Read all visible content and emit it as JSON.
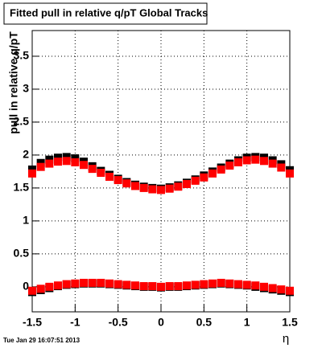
{
  "chart_data": {
    "type": "scatter",
    "title": "Fitted pull in relative q/pT  Global Tracks",
    "y_label": "pull in relative q/pT",
    "x_label": "η",
    "footer": "Tue Jan 29 16:07:51 2013",
    "xlim": [
      -1.5,
      1.5
    ],
    "ylim": [
      -0.38,
      3.89
    ],
    "xticks": [
      -1.5,
      -1,
      -0.5,
      0,
      0.5,
      1,
      1.5
    ],
    "yticks": [
      0,
      0.5,
      1,
      1.5,
      2,
      2.5,
      3,
      3.5
    ],
    "grid": true,
    "x": [
      -1.5,
      -1.4,
      -1.3,
      -1.2,
      -1.1,
      -1.0,
      -0.9,
      -0.8,
      -0.7,
      -0.6,
      -0.5,
      -0.4,
      -0.3,
      -0.2,
      -0.1,
      0,
      0.1,
      0.2,
      0.3,
      0.4,
      0.5,
      0.6,
      0.7,
      0.8,
      0.9,
      1.0,
      1.1,
      1.2,
      1.3,
      1.4,
      1.5
    ],
    "series": [
      {
        "color": "#000000",
        "values": [
          1.78,
          1.88,
          1.93,
          1.96,
          1.97,
          1.95,
          1.9,
          1.83,
          1.76,
          1.7,
          1.64,
          1.59,
          1.55,
          1.52,
          1.5,
          1.49,
          1.51,
          1.54,
          1.58,
          1.63,
          1.69,
          1.75,
          1.81,
          1.87,
          1.92,
          1.96,
          1.97,
          1.96,
          1.92,
          1.86,
          1.77
        ]
      },
      {
        "color": "#ff0000",
        "values": [
          1.72,
          1.82,
          1.87,
          1.9,
          1.91,
          1.89,
          1.85,
          1.79,
          1.73,
          1.67,
          1.62,
          1.57,
          1.53,
          1.5,
          1.48,
          1.47,
          1.49,
          1.52,
          1.56,
          1.61,
          1.66,
          1.72,
          1.78,
          1.84,
          1.89,
          1.92,
          1.93,
          1.91,
          1.87,
          1.81,
          1.72
        ]
      },
      {
        "color": "#000000",
        "values": [
          -0.08,
          -0.05,
          -0.02,
          0.01,
          0.03,
          0.04,
          0.05,
          0.05,
          0.05,
          0.04,
          0.03,
          0.02,
          0.01,
          0.0,
          0.0,
          -0.01,
          0.0,
          0.0,
          0.01,
          0.02,
          0.03,
          0.04,
          0.05,
          0.04,
          0.03,
          0.02,
          0.0,
          -0.02,
          -0.04,
          -0.06,
          -0.08
        ]
      },
      {
        "color": "#ff0000",
        "values": [
          -0.06,
          -0.03,
          0.0,
          0.02,
          0.04,
          0.05,
          0.06,
          0.06,
          0.06,
          0.05,
          0.04,
          0.03,
          0.02,
          0.01,
          0.01,
          0.0,
          0.01,
          0.01,
          0.02,
          0.03,
          0.04,
          0.05,
          0.06,
          0.05,
          0.04,
          0.03,
          0.02,
          0.0,
          -0.02,
          -0.04,
          -0.06
        ]
      }
    ]
  }
}
